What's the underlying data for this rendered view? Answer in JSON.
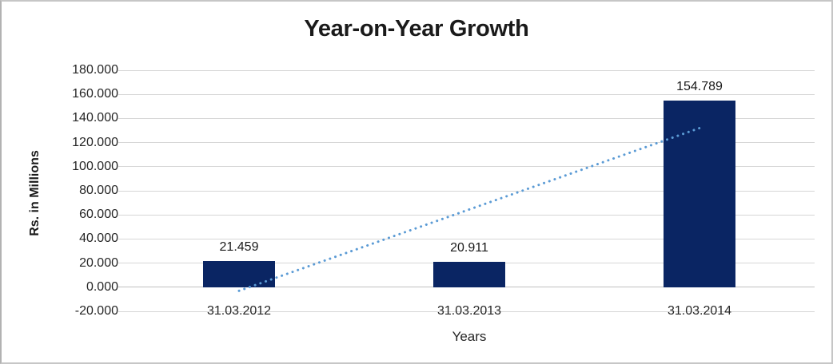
{
  "chart_data": {
    "type": "bar",
    "title": "Year-on-Year Growth",
    "xlabel": "Years",
    "ylabel": "Rs. in Millions",
    "categories": [
      "31.03.2012",
      "31.03.2013",
      "31.03.2014"
    ],
    "values": [
      21.459,
      20.911,
      154.789
    ],
    "data_labels": [
      "21.459",
      "20.911",
      "154.789"
    ],
    "ylim": [
      -20,
      180
    ],
    "ytick_step": 20,
    "ytick_labels": [
      "180.000",
      "160.000",
      "140.000",
      "120.000",
      "100.000",
      "80.000",
      "60.000",
      "40.000",
      "20.000",
      "0.000",
      "-20.000"
    ],
    "grid": true,
    "legend": "none",
    "bar_color": "#0A2563",
    "gridline_color": "#D6D6D6",
    "trendline": {
      "type": "linear",
      "style": "dotted",
      "color": "#5B9BD5",
      "start_value": -3,
      "end_value": 132
    }
  }
}
